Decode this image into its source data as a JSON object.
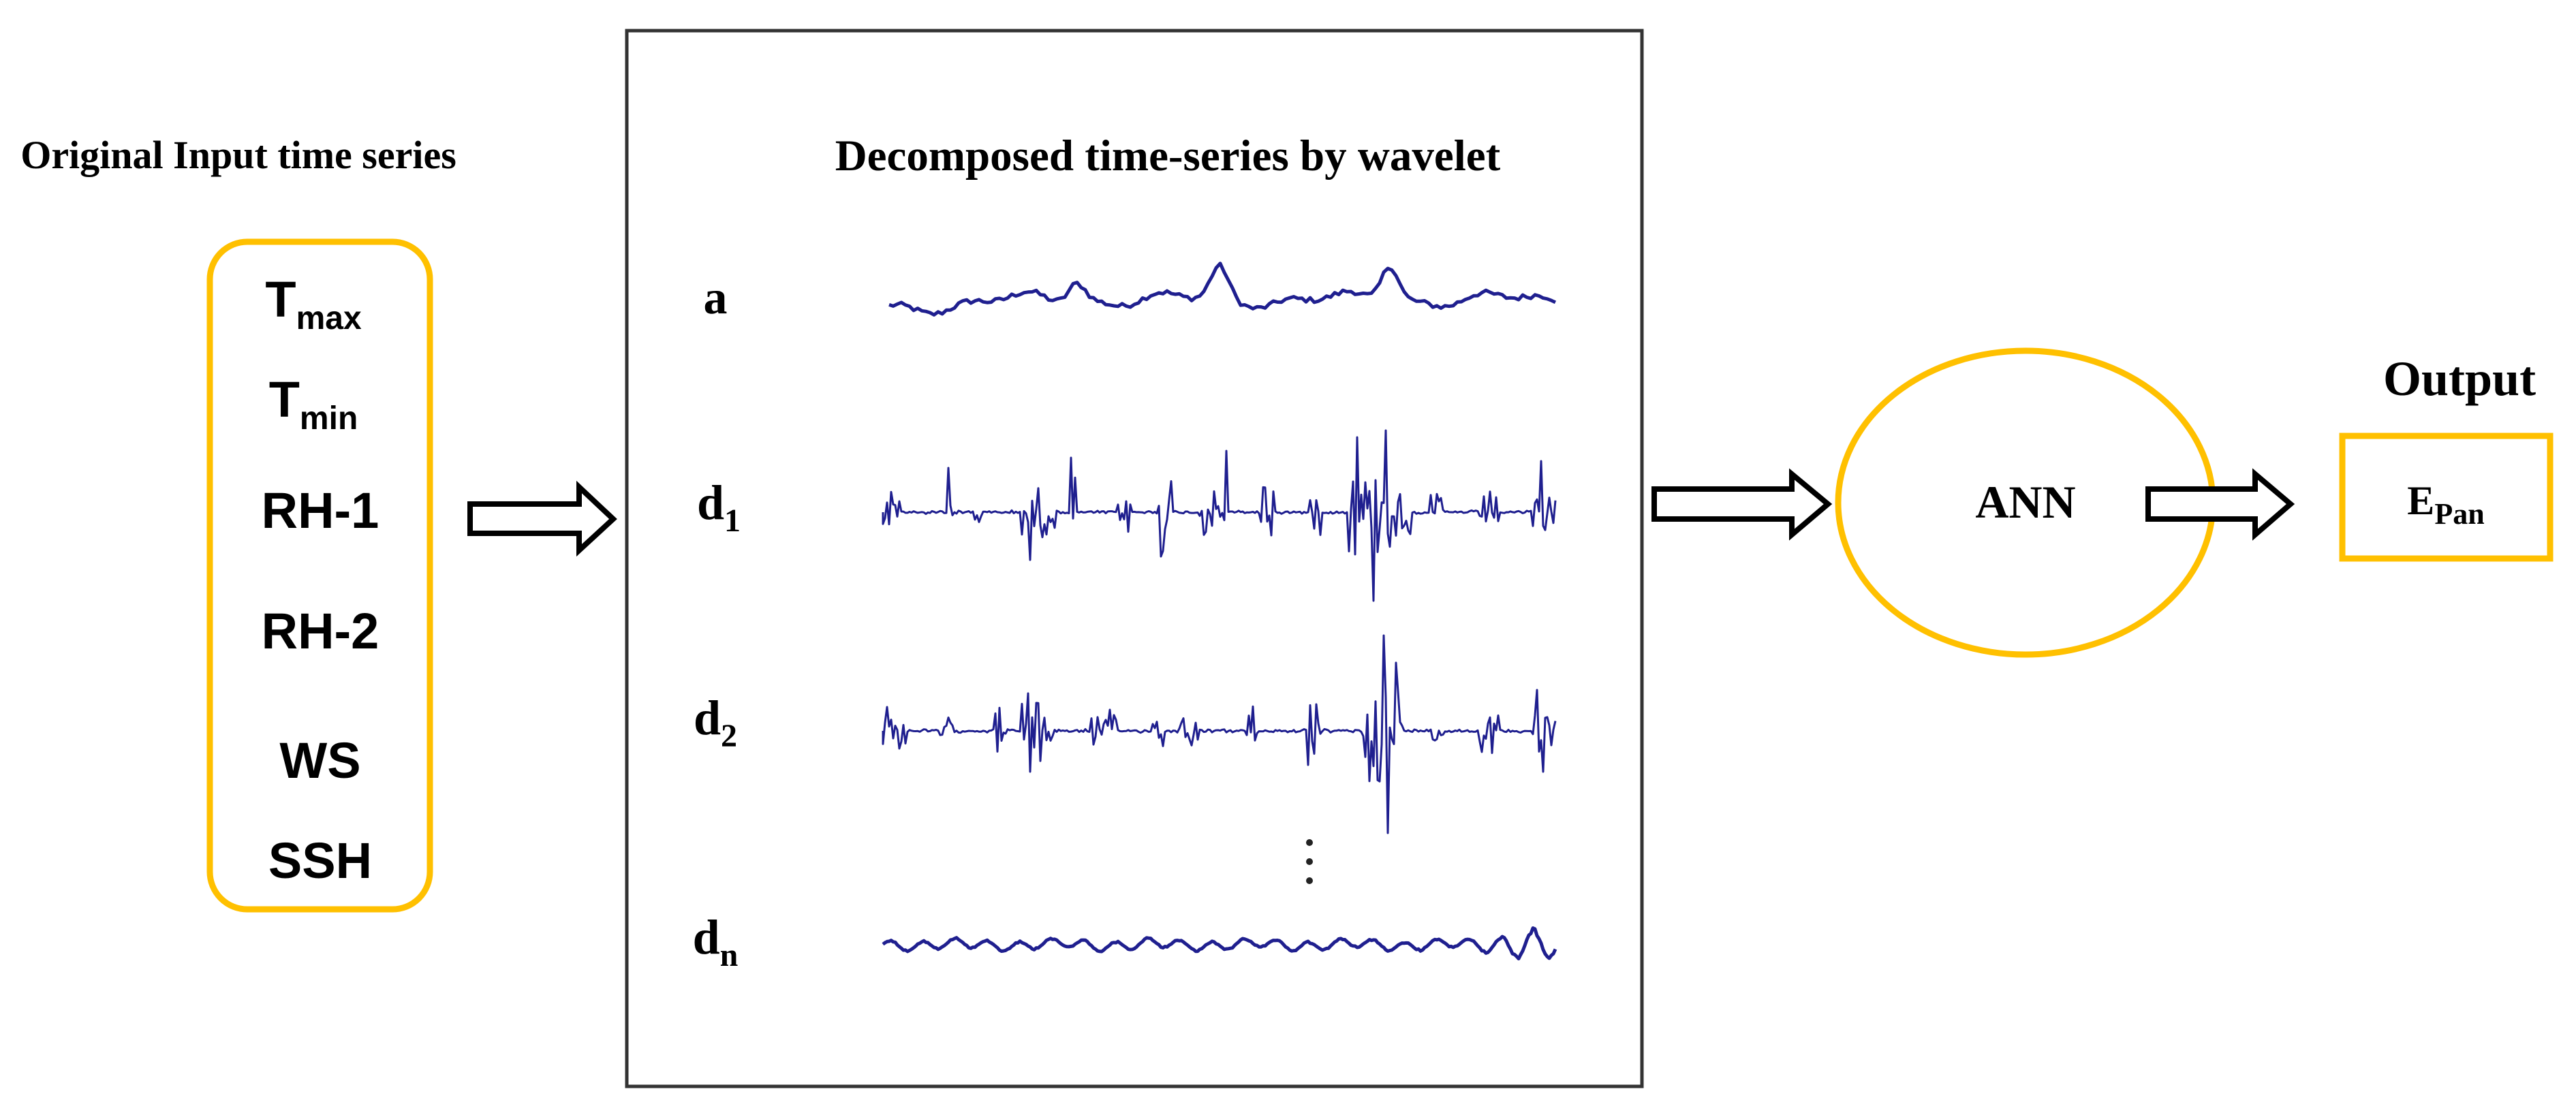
{
  "input_title": "Original Input time series",
  "inputs": [
    {
      "main": "T",
      "sub": "max"
    },
    {
      "main": "T",
      "sub": "min"
    },
    {
      "main": "RH-1",
      "sub": ""
    },
    {
      "main": "RH-2",
      "sub": ""
    },
    {
      "main": "WS",
      "sub": ""
    },
    {
      "main": "SSH",
      "sub": ""
    }
  ],
  "decomp_title": "Decomposed time-series by wavelet",
  "signals": [
    {
      "main": "a",
      "sub": ""
    },
    {
      "main": "d",
      "sub": "1"
    },
    {
      "main": "d",
      "sub": "2"
    },
    {
      "main": "d",
      "sub": "n"
    }
  ],
  "model_label": "ANN",
  "output_title": "Output",
  "output": {
    "main": "E",
    "sub": "Pan"
  },
  "colors": {
    "accent": "#FFC000",
    "signal": "#1F1F8F",
    "text": "#000000"
  }
}
